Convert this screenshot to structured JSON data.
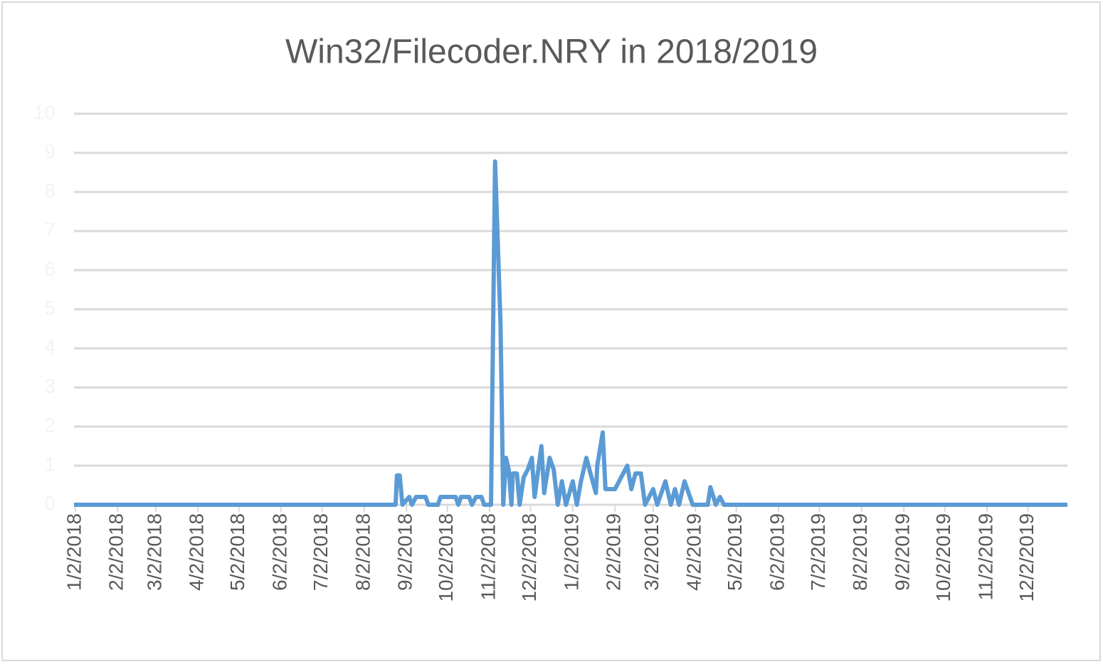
{
  "chart_data": {
    "type": "line",
    "title": "Win32/Filecoder.NRY in 2018/2019",
    "xlim": [
      "1/1/2018",
      "12/31/2019"
    ],
    "xticks": [
      "1/2/2018",
      "2/2/2018",
      "3/2/2018",
      "4/2/2018",
      "5/2/2018",
      "6/2/2018",
      "7/2/2018",
      "8/2/2018",
      "9/2/2018",
      "10/2/2018",
      "11/2/2018",
      "12/2/2018",
      "1/2/2019",
      "2/2/2019",
      "3/2/2019",
      "4/2/2019",
      "5/2/2019",
      "6/2/2019",
      "7/2/2019",
      "8/2/2019",
      "9/2/2019",
      "10/2/2019",
      "11/2/2019",
      "12/2/2019"
    ],
    "ylim": [
      0,
      10
    ],
    "yticks": [
      0,
      1,
      2,
      3,
      4,
      5,
      6,
      7,
      8,
      9,
      10
    ],
    "grid": true,
    "x": [
      "1/1/2018",
      "8/25/2018",
      "8/26/2018",
      "8/28/2018",
      "8/30/2018",
      "9/4/2018",
      "9/6/2018",
      "9/9/2018",
      "9/16/2018",
      "9/18/2018",
      "9/25/2018",
      "9/27/2018",
      "10/8/2018",
      "10/10/2018",
      "10/12/2018",
      "10/18/2018",
      "10/20/2018",
      "10/23/2018",
      "10/27/2018",
      "10/29/2018",
      "11/3/2018",
      "11/6/2018",
      "11/10/2018",
      "11/12/2018",
      "11/14/2018",
      "11/16/2018",
      "11/18/2018",
      "11/19/2018",
      "11/22/2018",
      "11/24/2018",
      "11/27/2018",
      "11/30/2018",
      "12/3/2018",
      "12/5/2018",
      "12/10/2018",
      "12/12/2018",
      "12/16/2018",
      "12/19/2018",
      "12/22/2018",
      "12/25/2018",
      "12/28/2018",
      "1/2/2019",
      "1/5/2019",
      "1/8/2019",
      "1/12/2019",
      "1/15/2019",
      "1/19/2019",
      "1/20/2019",
      "1/24/2019",
      "1/26/2019",
      "2/2/2019",
      "2/5/2019",
      "2/11/2019",
      "2/14/2019",
      "2/17/2019",
      "2/21/2019",
      "2/24/2019",
      "3/2/2019",
      "3/5/2019",
      "3/11/2019",
      "3/15/2019",
      "3/18/2019",
      "3/21/2019",
      "3/25/2019",
      "3/31/2019",
      "4/11/2019",
      "4/13/2019",
      "4/17/2019",
      "4/20/2019",
      "4/23/2019",
      "12/31/2019"
    ],
    "series": [
      {
        "color": "#5b9bd5",
        "values": [
          0,
          0,
          0.75,
          0.75,
          0,
          0.2,
          0,
          0.2,
          0.2,
          0,
          0,
          0.2,
          0.2,
          0,
          0.2,
          0.2,
          0,
          0.2,
          0.2,
          0,
          0,
          8.78,
          4.6,
          0,
          1.2,
          0.9,
          0,
          0.8,
          0.8,
          0,
          0.7,
          0.9,
          1.2,
          0.2,
          1.5,
          0.3,
          1.2,
          0.9,
          0,
          0.6,
          0,
          0.6,
          0,
          0.6,
          1.2,
          0.8,
          0.3,
          1.0,
          1.85,
          0.4,
          0.4,
          0.6,
          1.0,
          0.4,
          0.8,
          0.8,
          0,
          0.4,
          0,
          0.6,
          0,
          0.4,
          0,
          0.6,
          0,
          0,
          0.45,
          0,
          0.2,
          0,
          0
        ]
      }
    ]
  }
}
